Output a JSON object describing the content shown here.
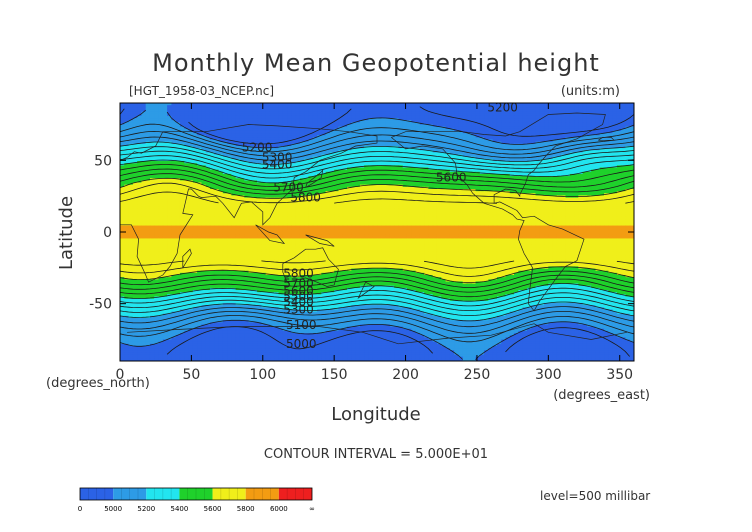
{
  "chart_data": {
    "type": "contour",
    "title": "Monthly Mean Geopotential height",
    "subtitle_left": "[HGT_1958-03_NCEP.nc]",
    "subtitle_right": "(units:m)",
    "xlabel": "Longitude",
    "ylabel": "Latitude",
    "x_units": "(degrees_east)",
    "y_units": "(degrees_north)",
    "xlim": [
      0,
      360
    ],
    "ylim": [
      -90,
      90
    ],
    "x_ticks": [
      0,
      50,
      100,
      150,
      200,
      250,
      300,
      350
    ],
    "y_ticks": [
      -50,
      0,
      50
    ],
    "contour_interval_text": "CONTOUR INTERVAL = 5.000E+01",
    "level_text": "level=500 millibar",
    "contour_labels": [
      {
        "text": "5200",
        "lon": 268,
        "lat": 87
      },
      {
        "text": "5200",
        "lon": 96,
        "lat": 59
      },
      {
        "text": "5300",
        "lon": 110,
        "lat": 52
      },
      {
        "text": "5400",
        "lon": 110,
        "lat": 47
      },
      {
        "text": "5600",
        "lon": 232,
        "lat": 38
      },
      {
        "text": "5700",
        "lon": 118,
        "lat": 31
      },
      {
        "text": "5800",
        "lon": 130,
        "lat": 24
      },
      {
        "text": "5800",
        "lon": 125,
        "lat": -29
      },
      {
        "text": "5700",
        "lon": 125,
        "lat": -36
      },
      {
        "text": "5600",
        "lon": 125,
        "lat": -41
      },
      {
        "text": "5500",
        "lon": 125,
        "lat": -45
      },
      {
        "text": "5400",
        "lon": 125,
        "lat": -49
      },
      {
        "text": "5300",
        "lon": 125,
        "lat": -54
      },
      {
        "text": "5100",
        "lon": 127,
        "lat": -65
      },
      {
        "text": "5000",
        "lon": 127,
        "lat": -78
      }
    ],
    "bands": [
      {
        "range": "<5000",
        "color": "#2b62e6"
      },
      {
        "range": "5000-5200",
        "color": "#2d9be6"
      },
      {
        "range": "5200-5400",
        "color": "#22e5ef"
      },
      {
        "range": "5400-5600",
        "color": "#1fd12b"
      },
      {
        "range": "5600-5800",
        "color": "#f0ef1a"
      },
      {
        "range": "5800-6000",
        "color": "#f39c12"
      },
      {
        "range": ">6000",
        "color": "#ee1f1f"
      }
    ],
    "colorbar": {
      "ticks": [
        "0",
        "5000",
        "5200",
        "5400",
        "5600",
        "5800",
        "6000",
        "∞"
      ],
      "colors": [
        "#2b62e6",
        "#2d9be6",
        "#22e5ef",
        "#1fd12b",
        "#f0ef1a",
        "#f39c12",
        "#ee1f1f"
      ]
    }
  }
}
